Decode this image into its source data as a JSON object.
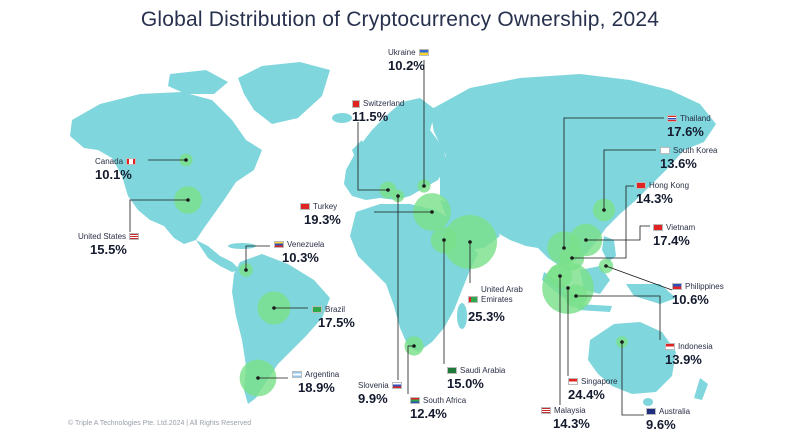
{
  "title": "Global Distribution of Cryptocurrency Ownership, 2024",
  "footer": "© Triple A Technologies Pte. Ltd.2024 | All Rights Reserved",
  "colors": {
    "land": "#7fd6dc",
    "bubble": "#7be08a",
    "line": "#1a1a1a",
    "text": "#27304d"
  },
  "countries": [
    {
      "name": "Ukraine",
      "value": "10.2%",
      "flag": "ukraine-flag"
    },
    {
      "name": "Switzerland",
      "value": "11.5%",
      "flag": "switzerland-flag"
    },
    {
      "name": "Canada",
      "value": "10.1%",
      "flag": "canada-flag"
    },
    {
      "name": "United States",
      "value": "15.5%",
      "flag": "usa-flag"
    },
    {
      "name": "Turkey",
      "value": "19.3%",
      "flag": "turkey-flag"
    },
    {
      "name": "Venezuela",
      "value": "10.3%",
      "flag": "venezuela-flag"
    },
    {
      "name": "Brazil",
      "value": "17.5%",
      "flag": "brazil-flag"
    },
    {
      "name": "Argentina",
      "value": "18.9%",
      "flag": "argentina-flag"
    },
    {
      "name": "Slovenia",
      "value": "9.9%",
      "flag": "slovenia-flag"
    },
    {
      "name": "South Africa",
      "value": "12.4%",
      "flag": "south-africa-flag"
    },
    {
      "name": "Saudi Arabia",
      "value": "15.0%",
      "flag": "saudi-arabia-flag"
    },
    {
      "name": "United Arab Emirates",
      "value": "25.3%",
      "flag": "uae-flag"
    },
    {
      "name": "Malaysia",
      "value": "14.3%",
      "flag": "malaysia-flag"
    },
    {
      "name": "Singapore",
      "value": "24.4%",
      "flag": "singapore-flag"
    },
    {
      "name": "Australia",
      "value": "9.6%",
      "flag": "australia-flag"
    },
    {
      "name": "Indonesia",
      "value": "13.9%",
      "flag": "indonesia-flag"
    },
    {
      "name": "Philippines",
      "value": "10.6%",
      "flag": "philippines-flag"
    },
    {
      "name": "Vietnam",
      "value": "17.4%",
      "flag": "vietnam-flag"
    },
    {
      "name": "Hong Kong",
      "value": "14.3%",
      "flag": "hong-kong-flag"
    },
    {
      "name": "South Korea",
      "value": "13.6%",
      "flag": "south-korea-flag"
    },
    {
      "name": "Thailand",
      "value": "17.6%",
      "flag": "thailand-flag"
    }
  ]
}
